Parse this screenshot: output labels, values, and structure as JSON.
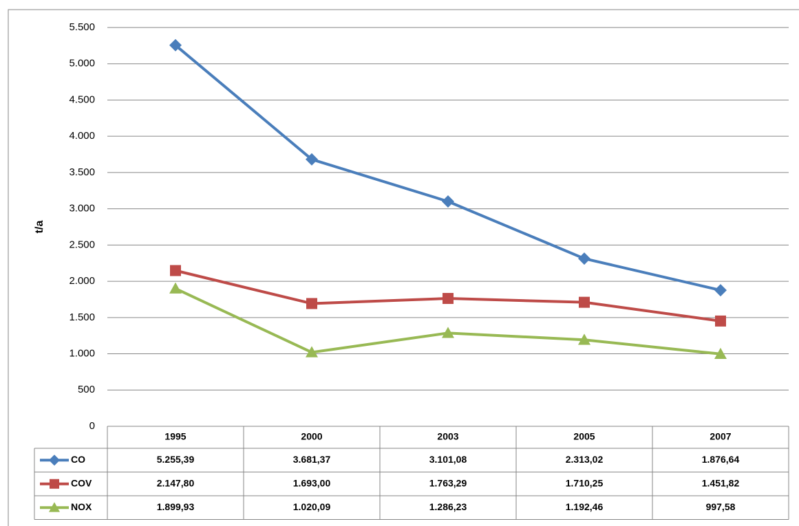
{
  "chart_data": {
    "type": "line",
    "y_label": "t/a",
    "categories": [
      "1995",
      "2000",
      "2003",
      "2005",
      "2007"
    ],
    "series": [
      {
        "name": "CO",
        "color": "#4a7ebb",
        "marker": "diamond",
        "values": [
          5255.39,
          3681.37,
          3101.08,
          2313.02,
          1876.64
        ],
        "value_labels": [
          "5.255,39",
          "3.681,37",
          "3.101,08",
          "2.313,02",
          "1.876,64"
        ]
      },
      {
        "name": "COV",
        "color": "#be4b48",
        "marker": "square",
        "values": [
          2147.8,
          1693.0,
          1763.29,
          1710.25,
          1451.82
        ],
        "value_labels": [
          "2.147,80",
          "1.693,00",
          "1.763,29",
          "1.710,25",
          "1.451,82"
        ]
      },
      {
        "name": "NOX",
        "color": "#98b954",
        "marker": "triangle",
        "values": [
          1899.93,
          1020.09,
          1286.23,
          1192.46,
          997.58
        ],
        "value_labels": [
          "1.899,93",
          "1.020,09",
          "1.286,23",
          "1.192,46",
          "997,58"
        ]
      }
    ],
    "ylim": [
      0,
      5500
    ],
    "yticks": [
      0,
      500,
      {
        "value": 1000,
        "label": "1.000"
      },
      {
        "value": 1500,
        "label": "1.500"
      },
      {
        "value": 2000,
        "label": "2.000"
      },
      {
        "value": 2500,
        "label": "2.500"
      },
      {
        "value": 3000,
        "label": "3.000"
      },
      {
        "value": 3500,
        "label": "3.500"
      },
      {
        "value": 4000,
        "label": "4.000"
      },
      {
        "value": 4500,
        "label": "4.500"
      },
      {
        "value": 5000,
        "label": "5.000"
      },
      {
        "value": 5500,
        "label": "5.500"
      }
    ],
    "grid": true,
    "data_table": true
  }
}
